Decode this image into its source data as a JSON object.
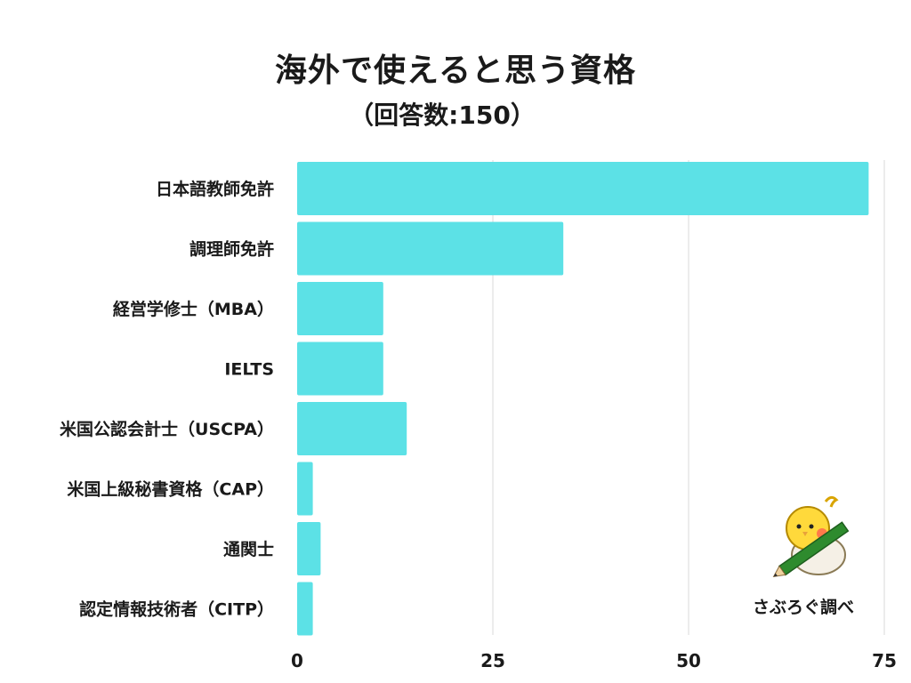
{
  "header": {
    "title": "海外で使えると思う資格",
    "subtitle": "（回答数:150）"
  },
  "credit": {
    "label": "さぶろぐ調べ",
    "icon": "bird-with-pencil-icon"
  },
  "colors": {
    "bar": "#5ce1e6",
    "grid": "#d9d9d9",
    "text": "#1a1a1a"
  },
  "chart_data": {
    "type": "bar",
    "orientation": "horizontal",
    "categories": [
      "日本語教師免許",
      "調理師免許",
      "経営学修士（MBA）",
      "IELTS",
      "米国公認会計士（USCPA）",
      "米国上級秘書資格（CAP）",
      "通関士",
      "認定情報技術者（CITP）"
    ],
    "values": [
      73,
      34,
      11,
      11,
      14,
      2,
      3,
      2
    ],
    "xticks": [
      0,
      25,
      50,
      75
    ],
    "xlim": [
      0,
      75
    ],
    "grid": "vertical",
    "legend": "none"
  }
}
